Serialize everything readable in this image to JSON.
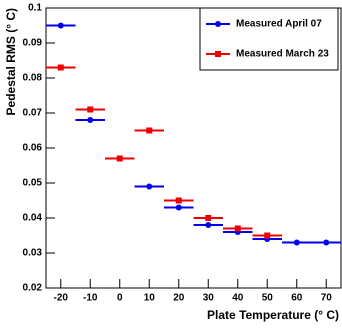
{
  "chart_data": {
    "type": "scatter",
    "x_label": "Plate Temperature (° C)",
    "y_label": "Pedestal RMS (° C)",
    "xlim": [
      -25,
      75
    ],
    "xticks": [
      -20,
      -10,
      0,
      10,
      20,
      30,
      40,
      50,
      60,
      70
    ],
    "ylim": [
      0.02,
      0.1
    ],
    "yticks": [
      0.02,
      0.03,
      0.04,
      0.05,
      0.06,
      0.07,
      0.08,
      0.09,
      0.1
    ],
    "legend": "upper right",
    "series": [
      {
        "name": "Measured April 07",
        "color": "#0000ee",
        "marker": "circle",
        "xerr": 5,
        "x": [
          -20,
          -10,
          0,
          10,
          20,
          30,
          40,
          50,
          60,
          70
        ],
        "values": [
          0.095,
          0.068,
          0.057,
          0.049,
          0.043,
          0.038,
          0.036,
          0.034,
          0.033,
          0.033
        ]
      },
      {
        "name": "Measured March 23",
        "color": "#ee0000",
        "marker": "square",
        "xerr": 5,
        "x": [
          -20,
          -10,
          0,
          10,
          20,
          30,
          40,
          50
        ],
        "values": [
          0.083,
          0.071,
          0.057,
          0.065,
          0.045,
          0.04,
          0.037,
          0.035
        ]
      }
    ]
  }
}
